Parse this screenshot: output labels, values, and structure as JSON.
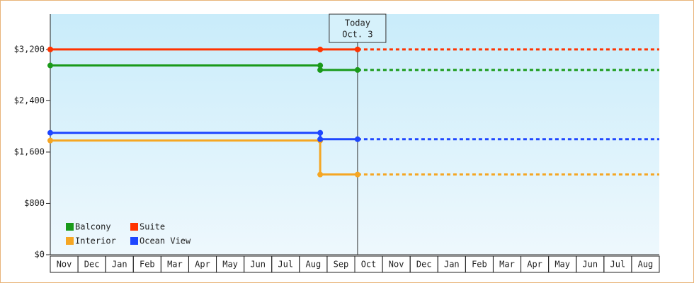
{
  "chart_data": {
    "type": "step-line",
    "xlim": [
      0,
      22
    ],
    "xticks": [
      {
        "value": 0,
        "label": "Nov"
      },
      {
        "value": 1,
        "label": "Dec"
      },
      {
        "value": 2,
        "label": "Jan"
      },
      {
        "value": 3,
        "label": "Feb"
      },
      {
        "value": 4,
        "label": "Mar"
      },
      {
        "value": 5,
        "label": "Apr"
      },
      {
        "value": 6,
        "label": "May"
      },
      {
        "value": 7,
        "label": "Jun"
      },
      {
        "value": 8,
        "label": "Jul"
      },
      {
        "value": 9,
        "label": "Aug"
      },
      {
        "value": 10,
        "label": "Sep"
      },
      {
        "value": 11,
        "label": "Oct"
      },
      {
        "value": 12,
        "label": "Nov"
      },
      {
        "value": 13,
        "label": "Dec"
      },
      {
        "value": 14,
        "label": "Jan"
      },
      {
        "value": 15,
        "label": "Feb"
      },
      {
        "value": 16,
        "label": "Mar"
      },
      {
        "value": 17,
        "label": "Apr"
      },
      {
        "value": 18,
        "label": "May"
      },
      {
        "value": 19,
        "label": "Jun"
      },
      {
        "value": 20,
        "label": "Jul"
      },
      {
        "value": 21,
        "label": "Aug"
      }
    ],
    "ylim": [
      0,
      3750
    ],
    "yticks": [
      {
        "value": 0,
        "label": "$0"
      },
      {
        "value": 800,
        "label": "$800"
      },
      {
        "value": 1600,
        "label": "$1,600"
      },
      {
        "value": 2400,
        "label": "$2,400"
      },
      {
        "value": 3200,
        "label": "$3,200"
      }
    ],
    "series": [
      {
        "name": "Balcony",
        "color": "#1a9a1a",
        "x": [
          0,
          9.75,
          9.75,
          11.1
        ],
        "values": [
          2950,
          2950,
          2880,
          2880
        ]
      },
      {
        "name": "Suite",
        "color": "#ff3300",
        "x": [
          0,
          9.75,
          11.1
        ],
        "values": [
          3200,
          3200,
          3200
        ]
      },
      {
        "name": "Interior",
        "color": "#f5a623",
        "x": [
          0,
          9.75,
          9.75,
          11.1
        ],
        "values": [
          1780,
          1780,
          1250,
          1250
        ]
      },
      {
        "name": "Ocean View",
        "color": "#1e46ff",
        "x": [
          0,
          9.75,
          9.75,
          11.1
        ],
        "values": [
          1900,
          1900,
          1800,
          1800
        ]
      }
    ],
    "annotation": {
      "text": [
        "Today",
        "Oct. 3"
      ],
      "x": 11.1
    },
    "legend": "lower left"
  }
}
